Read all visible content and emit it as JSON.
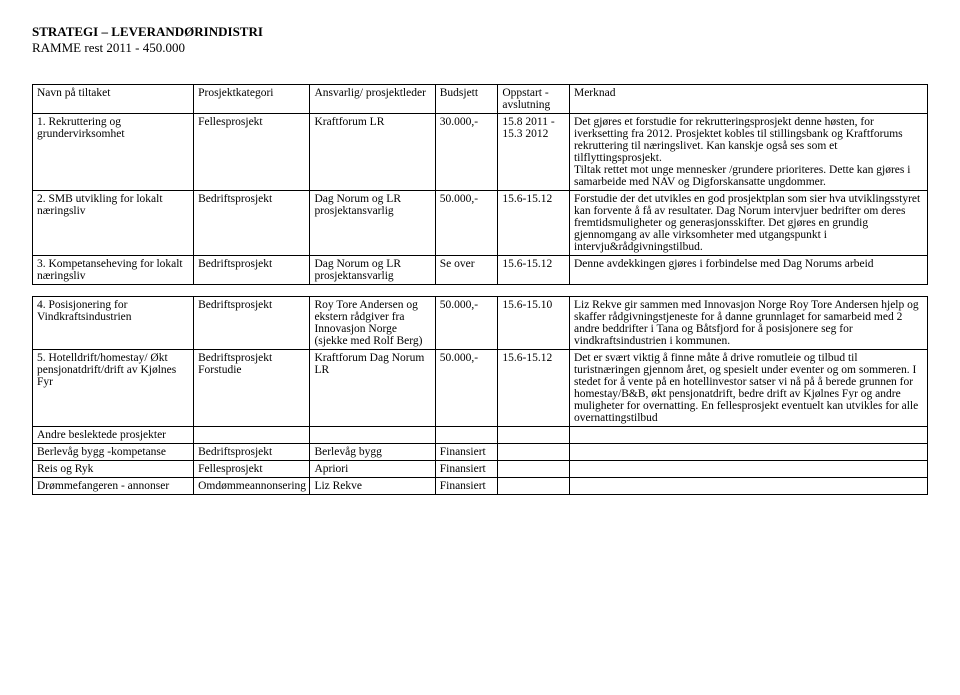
{
  "header": {
    "title": "STRATEGI – LEVERANDØRINDISTRI",
    "sub": "RAMME  rest 2011 - 450.000"
  },
  "cols": {
    "c0": "Navn på tiltaket",
    "c1": "Prosjektkategori",
    "c2": "Ansvarlig/ prosjektleder",
    "c3": "Budsjett",
    "c4": "Oppstart - avslutning",
    "c5": "Merknad"
  },
  "r1": {
    "c0": "1. Rekruttering og grundervirksomhet",
    "c1": "Fellesprosjekt",
    "c2": "Kraftforum LR",
    "c3": "30.000,-",
    "c4": "15.8 2011 - 15.3 2012",
    "c5": "Det gjøres et forstudie for rekrutteringsprosjekt denne høsten, for iverksetting fra 2012. Prosjektet kobles til stillingsbank og Kraftforums rekruttering til næringslivet. Kan kanskje også ses som et tilflyttingsprosjekt.\nTiltak rettet mot unge mennesker /grundere prioriteres. Dette kan gjøres i samarbeide med NAV og Digforskansatte ungdommer."
  },
  "r2": {
    "c0": "2. SMB utvikling for lokalt næringsliv",
    "c1": "Bedriftsprosjekt",
    "c2": "Dag Norum og LR prosjektansvarlig",
    "c3": "50.000,-",
    "c4": "15.6-15.12",
    "c5": "Forstudie der det utvikles en god prosjektplan som sier hva utviklingsstyret kan forvente å få av resultater. Dag Norum intervjuer bedrifter om deres fremtidsmuligheter og generasjonsskifter. Det gjøres en grundig gjennomgang av alle virksomheter med utgangspunkt i intervju&rådgivningstilbud."
  },
  "r3": {
    "c0": "3. Kompetanseheving for lokalt næringsliv",
    "c1": "Bedriftsprosjekt",
    "c2": "Dag Norum og LR prosjektansvarlig",
    "c3": "Se over",
    "c4": "15.6-15.12",
    "c5": "Denne avdekkingen gjøres i forbindelse med Dag Norums arbeid"
  },
  "r4": {
    "c0": "4. Posisjonering for Vindkraftsindustrien",
    "c1": "Bedriftsprosjekt",
    "c2": "Roy Tore Andersen og ekstern rådgiver fra Innovasjon Norge (sjekke med Rolf Berg)",
    "c3": "50.000,-",
    "c4": "15.6-15.10",
    "c5": "Liz Rekve gir sammen med Innovasjon Norge Roy Tore Andersen hjelp og skaffer rådgivningstjeneste for å danne grunnlaget for samarbeid med 2 andre beddrifter i Tana og Båtsfjord for å posisjonere seg for vindkraftsindustrien i kommunen."
  },
  "r5": {
    "c0": "5. Hotelldrift/homestay/ Økt pensjonatdrift/drift av Kjølnes Fyr",
    "c1": "Bedriftsprosjekt Forstudie",
    "c2": "Kraftforum Dag Norum LR",
    "c3": "50.000,-",
    "c4": "15.6-15.12",
    "c5": "Det er svært viktig å finne måte å drive romutleie og tilbud til turistnæringen gjennom året, og spesielt under eventer og om sommeren. I stedet for å vente på en hotellinvestor satser vi nå på å berede grunnen for homestay/B&B, økt pensjonatdrift, bedre drift av Kjølnes Fyr og andre muligheter for overnatting. En fellesprosjekt eventuelt kan utvikles for alle overnattingstilbud"
  },
  "r6": {
    "c0": "Andre beslektede prosjekter"
  },
  "r7": {
    "c0": "Berlevåg bygg -kompetanse",
    "c1": "Bedriftsprosjekt",
    "c2": "Berlevåg bygg",
    "c3": "Finansiert"
  },
  "r8": {
    "c0": "Reis og Ryk",
    "c1": "Fellesprosjekt",
    "c2": "Apriori",
    "c3": "Finansiert"
  },
  "r9": {
    "c0": "Drømmefangeren - annonser",
    "c1": "Omdømmeannonsering",
    "c2": "Liz Rekve",
    "c3": "Finansiert"
  }
}
